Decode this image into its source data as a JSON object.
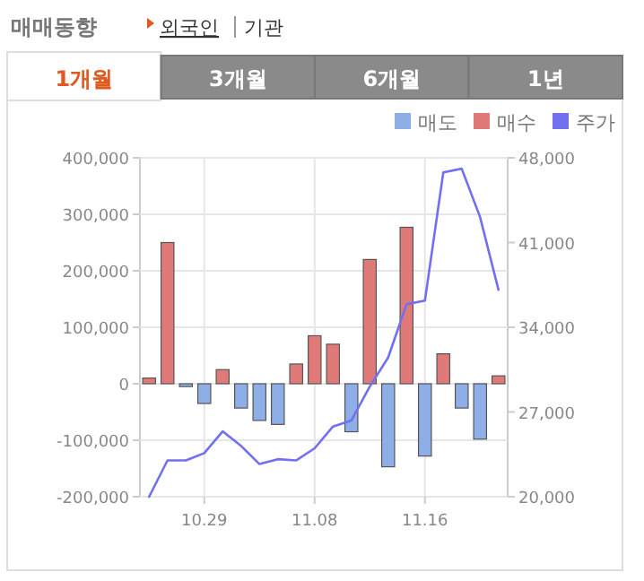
{
  "chart_data": {
    "type": "bar",
    "title": "매매동향",
    "annotations": [
      "외국인",
      "기관",
      "1개월",
      "3개월",
      "6개월",
      "1년"
    ],
    "categories": [
      null,
      null,
      null,
      "10.29",
      null,
      null,
      null,
      null,
      null,
      "11.08",
      null,
      null,
      null,
      null,
      null,
      "11.16",
      null,
      null,
      null,
      null
    ],
    "series": [
      {
        "name": "매도",
        "color": "#8eaee8",
        "values": [
          null,
          null,
          -5000,
          -35000,
          null,
          -43000,
          -65000,
          -72000,
          null,
          null,
          null,
          -85000,
          null,
          -147000,
          null,
          -128000,
          null,
          -43000,
          -98000,
          null
        ]
      },
      {
        "name": "매수",
        "color": "#e07a78",
        "values": [
          10000,
          250000,
          null,
          null,
          25000,
          null,
          null,
          null,
          35000,
          85000,
          70000,
          null,
          220000,
          null,
          277000,
          null,
          53000,
          null,
          null,
          14000
        ]
      },
      {
        "name": "주가",
        "color": "#7070f0",
        "type": "line",
        "axis": "y2",
        "values": [
          20000,
          23000,
          23000,
          23600,
          25400,
          24200,
          22700,
          23100,
          23000,
          24000,
          25800,
          26300,
          29100,
          31500,
          35900,
          36200,
          46800,
          47100,
          43100,
          37100
        ]
      }
    ],
    "ylim": [
      -200000,
      400000
    ],
    "yticks": [
      {
        "value": -200000,
        "label": "-200,000"
      },
      {
        "value": -100000,
        "label": "-100,000"
      },
      0,
      {
        "value": 100000,
        "label": "100,000"
      },
      {
        "value": 200000,
        "label": "200,000"
      },
      {
        "value": 300000,
        "label": "300,000"
      },
      {
        "value": 400000,
        "label": "400,000"
      }
    ],
    "y2lim": [
      20000,
      48000
    ],
    "y2ticks": [
      {
        "value": 20000,
        "label": "20,000"
      },
      {
        "value": 27000,
        "label": "27,000"
      },
      {
        "value": 34000,
        "label": "34,000"
      },
      {
        "value": 41000,
        "label": "41,000"
      },
      {
        "value": 48000,
        "label": "48,000"
      }
    ],
    "grid": true,
    "legend": "top right"
  }
}
